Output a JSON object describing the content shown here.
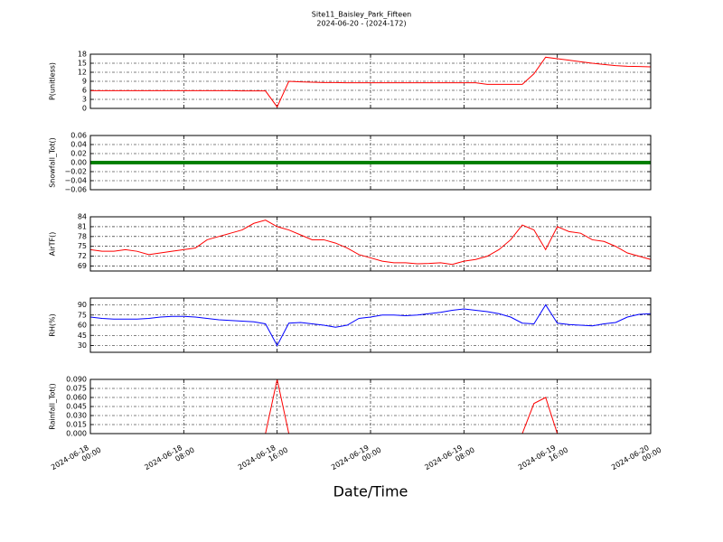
{
  "chart_data": [
    {
      "type": "line",
      "title": "Site11_Baisley_Park_Fifteen",
      "subtitle": "2024-06-20 - (2024-172)",
      "ylabel": "P(unitless)",
      "color": "#ff0000",
      "x": [
        "2024-06-18 00:00",
        "2024-06-18 01:00",
        "2024-06-18 02:00",
        "2024-06-18 03:00",
        "2024-06-18 04:00",
        "2024-06-18 05:00",
        "2024-06-18 06:00",
        "2024-06-18 07:00",
        "2024-06-18 08:00",
        "2024-06-18 09:00",
        "2024-06-18 10:00",
        "2024-06-18 11:00",
        "2024-06-18 12:00",
        "2024-06-18 13:00",
        "2024-06-18 14:00",
        "2024-06-18 15:00",
        "2024-06-18 16:00",
        "2024-06-18 17:00",
        "2024-06-18 18:00",
        "2024-06-18 19:00",
        "2024-06-18 20:00",
        "2024-06-18 21:00",
        "2024-06-18 22:00",
        "2024-06-18 23:00",
        "2024-06-19 00:00",
        "2024-06-19 01:00",
        "2024-06-19 02:00",
        "2024-06-19 03:00",
        "2024-06-19 04:00",
        "2024-06-19 05:00",
        "2024-06-19 06:00",
        "2024-06-19 07:00",
        "2024-06-19 08:00",
        "2024-06-19 09:00",
        "2024-06-19 10:00",
        "2024-06-19 11:00",
        "2024-06-19 12:00",
        "2024-06-19 13:00",
        "2024-06-19 14:00",
        "2024-06-19 15:00",
        "2024-06-19 16:00",
        "2024-06-19 17:00",
        "2024-06-19 18:00",
        "2024-06-19 19:00",
        "2024-06-19 20:00",
        "2024-06-19 21:00",
        "2024-06-19 22:00",
        "2024-06-19 23:00",
        "2024-06-20 00:00"
      ],
      "values": [
        5.9,
        5.9,
        5.9,
        5.9,
        5.9,
        5.9,
        5.9,
        5.9,
        5.9,
        5.9,
        5.9,
        5.9,
        5.9,
        5.8,
        5.8,
        5.8,
        0.5,
        9.0,
        8.8,
        8.7,
        8.6,
        8.6,
        8.5,
        8.5,
        8.5,
        8.5,
        8.5,
        8.5,
        8.5,
        8.5,
        8.5,
        8.5,
        8.5,
        8.5,
        8.0,
        8.0,
        8.0,
        8.0,
        11.5,
        17.0,
        16.5,
        16.0,
        15.5,
        15.0,
        14.6,
        14.2,
        14.0,
        13.9,
        13.8
      ],
      "ylim": [
        0,
        18
      ],
      "yticks": [
        0,
        3,
        6,
        9,
        12,
        15,
        18
      ],
      "grid": true
    },
    {
      "type": "line",
      "ylabel": "Snowfall_Tot()",
      "color": "#008000",
      "x": [
        "2024-06-18 00:00",
        "2024-06-18 01:00",
        "2024-06-18 02:00",
        "2024-06-18 03:00",
        "2024-06-18 04:00",
        "2024-06-18 05:00",
        "2024-06-18 06:00",
        "2024-06-18 07:00",
        "2024-06-18 08:00",
        "2024-06-18 09:00",
        "2024-06-18 10:00",
        "2024-06-18 11:00",
        "2024-06-18 12:00",
        "2024-06-18 13:00",
        "2024-06-18 14:00",
        "2024-06-18 15:00",
        "2024-06-18 16:00",
        "2024-06-18 17:00",
        "2024-06-18 18:00",
        "2024-06-18 19:00",
        "2024-06-18 20:00",
        "2024-06-18 21:00",
        "2024-06-18 22:00",
        "2024-06-18 23:00",
        "2024-06-19 00:00",
        "2024-06-19 01:00",
        "2024-06-19 02:00",
        "2024-06-19 03:00",
        "2024-06-19 04:00",
        "2024-06-19 05:00",
        "2024-06-19 06:00",
        "2024-06-19 07:00",
        "2024-06-19 08:00",
        "2024-06-19 09:00",
        "2024-06-19 10:00",
        "2024-06-19 11:00",
        "2024-06-19 12:00",
        "2024-06-19 13:00",
        "2024-06-19 14:00",
        "2024-06-19 15:00",
        "2024-06-19 16:00",
        "2024-06-19 17:00",
        "2024-06-19 18:00",
        "2024-06-19 19:00",
        "2024-06-19 20:00",
        "2024-06-19 21:00",
        "2024-06-19 22:00",
        "2024-06-19 23:00",
        "2024-06-20 00:00"
      ],
      "values": [
        0,
        0,
        0,
        0,
        0,
        0,
        0,
        0,
        0,
        0,
        0,
        0,
        0,
        0,
        0,
        0,
        0,
        0,
        0,
        0,
        0,
        0,
        0,
        0,
        0,
        0,
        0,
        0,
        0,
        0,
        0,
        0,
        0,
        0,
        0,
        0,
        0,
        0,
        0,
        0,
        0,
        0,
        0,
        0,
        0,
        0,
        0,
        0,
        0
      ],
      "ylim": [
        -0.06,
        0.06
      ],
      "yticks": [
        {
          "value": -0.06,
          "label": "−0.06"
        },
        {
          "value": -0.04,
          "label": "−0.04"
        },
        {
          "value": -0.02,
          "label": "−0.02"
        },
        {
          "value": 0,
          "label": "0.00"
        },
        0.02,
        0.04,
        0.06
      ],
      "grid": true
    },
    {
      "type": "line",
      "ylabel": "AirTF()",
      "color": "#ff0000",
      "x": [
        "2024-06-18 00:00",
        "2024-06-18 01:00",
        "2024-06-18 02:00",
        "2024-06-18 03:00",
        "2024-06-18 04:00",
        "2024-06-18 05:00",
        "2024-06-18 06:00",
        "2024-06-18 07:00",
        "2024-06-18 08:00",
        "2024-06-18 09:00",
        "2024-06-18 10:00",
        "2024-06-18 11:00",
        "2024-06-18 12:00",
        "2024-06-18 13:00",
        "2024-06-18 14:00",
        "2024-06-18 15:00",
        "2024-06-18 16:00",
        "2024-06-18 17:00",
        "2024-06-18 18:00",
        "2024-06-18 19:00",
        "2024-06-18 20:00",
        "2024-06-18 21:00",
        "2024-06-18 22:00",
        "2024-06-18 23:00",
        "2024-06-19 00:00",
        "2024-06-19 01:00",
        "2024-06-19 02:00",
        "2024-06-19 03:00",
        "2024-06-19 04:00",
        "2024-06-19 05:00",
        "2024-06-19 06:00",
        "2024-06-19 07:00",
        "2024-06-19 08:00",
        "2024-06-19 09:00",
        "2024-06-19 10:00",
        "2024-06-19 11:00",
        "2024-06-19 12:00",
        "2024-06-19 13:00",
        "2024-06-19 14:00",
        "2024-06-19 15:00",
        "2024-06-19 16:00",
        "2024-06-19 17:00",
        "2024-06-19 18:00",
        "2024-06-19 19:00",
        "2024-06-19 20:00",
        "2024-06-19 21:00",
        "2024-06-19 22:00",
        "2024-06-19 23:00",
        "2024-06-20 00:00"
      ],
      "values": [
        74,
        73.5,
        73.5,
        74,
        73.5,
        72.5,
        73,
        73.5,
        74,
        74.5,
        77,
        78,
        79,
        80,
        82,
        83,
        81,
        80,
        78.5,
        77,
        77,
        76,
        74.5,
        72.5,
        71.5,
        70.5,
        70,
        70,
        69.7,
        69.8,
        70,
        69.5,
        70.5,
        71,
        72,
        74,
        77,
        81.5,
        80,
        74,
        81,
        79.5,
        79,
        77,
        76.5,
        75,
        73,
        72,
        71
      ],
      "ylim": [
        67.5,
        84
      ],
      "yticks": [
        69,
        72,
        75,
        78,
        81,
        84
      ],
      "grid": true
    },
    {
      "type": "line",
      "ylabel": "RH(%)",
      "color": "#0000ff",
      "x": [
        "2024-06-18 00:00",
        "2024-06-18 01:00",
        "2024-06-18 02:00",
        "2024-06-18 03:00",
        "2024-06-18 04:00",
        "2024-06-18 05:00",
        "2024-06-18 06:00",
        "2024-06-18 07:00",
        "2024-06-18 08:00",
        "2024-06-18 09:00",
        "2024-06-18 10:00",
        "2024-06-18 11:00",
        "2024-06-18 12:00",
        "2024-06-18 13:00",
        "2024-06-18 14:00",
        "2024-06-18 15:00",
        "2024-06-18 16:00",
        "2024-06-18 17:00",
        "2024-06-18 18:00",
        "2024-06-18 19:00",
        "2024-06-18 20:00",
        "2024-06-18 21:00",
        "2024-06-18 22:00",
        "2024-06-18 23:00",
        "2024-06-19 00:00",
        "2024-06-19 01:00",
        "2024-06-19 02:00",
        "2024-06-19 03:00",
        "2024-06-19 04:00",
        "2024-06-19 05:00",
        "2024-06-19 06:00",
        "2024-06-19 07:00",
        "2024-06-19 08:00",
        "2024-06-19 09:00",
        "2024-06-19 10:00",
        "2024-06-19 11:00",
        "2024-06-19 12:00",
        "2024-06-19 13:00",
        "2024-06-19 14:00",
        "2024-06-19 15:00",
        "2024-06-19 16:00",
        "2024-06-19 17:00",
        "2024-06-19 18:00",
        "2024-06-19 19:00",
        "2024-06-19 20:00",
        "2024-06-19 21:00",
        "2024-06-19 22:00",
        "2024-06-19 23:00",
        "2024-06-20 00:00"
      ],
      "values": [
        72,
        70,
        69,
        69,
        69,
        70,
        72,
        73,
        73,
        72,
        70,
        68,
        67,
        66,
        65,
        62,
        30,
        63,
        64,
        62,
        60,
        57,
        60,
        70,
        72,
        75,
        75,
        74,
        75,
        77,
        79,
        82,
        84,
        82,
        80,
        77,
        72,
        63,
        62,
        90,
        63,
        61,
        60,
        59,
        62,
        64,
        72,
        76,
        77
      ],
      "ylim": [
        20,
        100
      ],
      "yticks": [
        30,
        45,
        60,
        75,
        90
      ],
      "grid": true
    },
    {
      "type": "line",
      "ylabel": "Rainfall_Tot()",
      "xlabel": "Date/Time",
      "color": "#ff0000",
      "x": [
        "2024-06-18 00:00",
        "2024-06-18 01:00",
        "2024-06-18 02:00",
        "2024-06-18 03:00",
        "2024-06-18 04:00",
        "2024-06-18 05:00",
        "2024-06-18 06:00",
        "2024-06-18 07:00",
        "2024-06-18 08:00",
        "2024-06-18 09:00",
        "2024-06-18 10:00",
        "2024-06-18 11:00",
        "2024-06-18 12:00",
        "2024-06-18 13:00",
        "2024-06-18 14:00",
        "2024-06-18 15:00",
        "2024-06-18 16:00",
        "2024-06-18 17:00",
        "2024-06-18 18:00",
        "2024-06-18 19:00",
        "2024-06-18 20:00",
        "2024-06-18 21:00",
        "2024-06-18 22:00",
        "2024-06-18 23:00",
        "2024-06-19 00:00",
        "2024-06-19 01:00",
        "2024-06-19 02:00",
        "2024-06-19 03:00",
        "2024-06-19 04:00",
        "2024-06-19 05:00",
        "2024-06-19 06:00",
        "2024-06-19 07:00",
        "2024-06-19 08:00",
        "2024-06-19 09:00",
        "2024-06-19 10:00",
        "2024-06-19 11:00",
        "2024-06-19 12:00",
        "2024-06-19 13:00",
        "2024-06-19 14:00",
        "2024-06-19 15:00",
        "2024-06-19 16:00",
        "2024-06-19 17:00",
        "2024-06-19 18:00",
        "2024-06-19 19:00",
        "2024-06-19 20:00",
        "2024-06-19 21:00",
        "2024-06-19 22:00",
        "2024-06-19 23:00",
        "2024-06-20 00:00"
      ],
      "values": [
        0,
        0,
        0,
        0,
        0,
        0,
        0,
        0,
        0,
        0,
        0,
        0,
        0,
        0,
        0,
        0,
        0.09,
        0,
        0,
        0,
        0,
        0,
        0,
        0,
        0,
        0,
        0,
        0,
        0,
        0,
        0,
        0,
        0,
        0,
        0,
        0,
        0,
        0,
        0.05,
        0.06,
        0,
        0,
        0,
        0,
        0,
        0,
        0,
        0,
        0
      ],
      "ylim": [
        0,
        0.09
      ],
      "yticks": [
        {
          "value": 0,
          "label": "0.000"
        },
        {
          "value": 0.015,
          "label": "0.015"
        },
        {
          "value": 0.03,
          "label": "0.030"
        },
        {
          "value": 0.045,
          "label": "0.045"
        },
        {
          "value": 0.06,
          "label": "0.060"
        },
        {
          "value": 0.075,
          "label": "0.075"
        },
        {
          "value": 0.09,
          "label": "0.090"
        }
      ],
      "grid": true,
      "xlim": [
        "2024-06-18 00:00",
        "2024-06-20 00:00"
      ],
      "xticks": [
        "2024-06-18 00:00",
        "2024-06-18 08:00",
        "2024-06-18 16:00",
        "2024-06-19 00:00",
        "2024-06-19 08:00",
        "2024-06-19 16:00",
        "2024-06-20 00:00"
      ]
    }
  ]
}
